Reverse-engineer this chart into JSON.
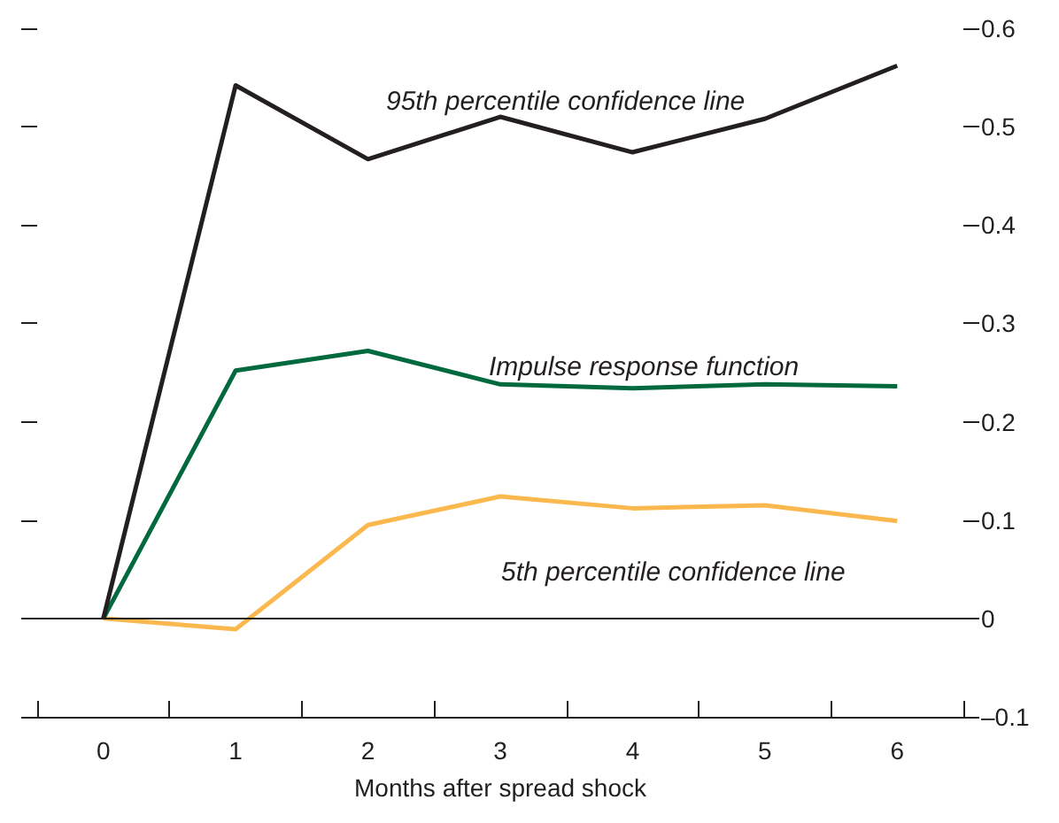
{
  "chart_data": {
    "type": "line",
    "xlabel": "Months after spread shock",
    "categories": [
      "0",
      "1",
      "2",
      "3",
      "4",
      "5",
      "6"
    ],
    "series": [
      {
        "name": "95th percentile confidence line",
        "color": "#231f20",
        "values": [
          0,
          0.542,
          0.467,
          0.51,
          0.474,
          0.508,
          0.562
        ]
      },
      {
        "name": "Impulse response function",
        "color": "#00693e",
        "values": [
          0,
          0.252,
          0.272,
          0.238,
          0.234,
          0.238,
          0.236
        ]
      },
      {
        "name": "5th percentile confidence line",
        "color": "#fbb84e",
        "values": [
          0,
          -0.011,
          0.095,
          0.124,
          0.112,
          0.115,
          0.099
        ]
      }
    ],
    "ylim": [
      -0.1,
      0.6
    ],
    "yticks": [
      {
        "value": -0.1,
        "label": "–0.1"
      },
      0,
      0.1,
      0.2,
      0.3,
      0.4,
      0.5,
      0.6
    ],
    "ref_lines": [
      {
        "axis": "y",
        "value": 0,
        "color": "#231f20"
      }
    ],
    "marker": "none",
    "line_style": "solid",
    "grid": false,
    "legend": false
  }
}
